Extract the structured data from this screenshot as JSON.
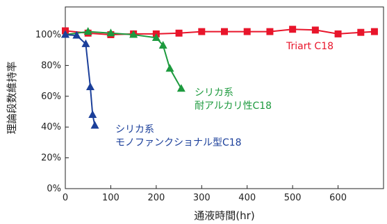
{
  "chart_data": {
    "type": "line",
    "xlabel": "通液時間(hr)",
    "ylabel": "理論段数維持率",
    "xlim": [
      0,
      700
    ],
    "ylim": [
      0,
      100
    ],
    "x_ticks": [
      "0",
      "100",
      "200",
      "300",
      "400",
      "500",
      "600"
    ],
    "y_ticks": [
      "0%",
      "20%",
      "40%",
      "60%",
      "80%",
      "100%"
    ],
    "grid": false,
    "series": [
      {
        "name": "Triart C18",
        "color": "#e8152b",
        "marker": "square",
        "label_lines": [
          "Triart C18"
        ],
        "x": [
          0,
          50,
          100,
          150,
          200,
          250,
          300,
          350,
          400,
          450,
          500,
          550,
          600,
          650,
          680
        ],
        "y": [
          102.5,
          101,
          100,
          100.5,
          100.5,
          101,
          102,
          102,
          102,
          102,
          103.5,
          103,
          100.5,
          101.5,
          102
        ]
      },
      {
        "name": "シリカ系 耐アルカリ性C18",
        "color": "#1d9a3e",
        "marker": "triangle",
        "label_lines": [
          "シリカ系",
          "耐アルカリ性C18"
        ],
        "x": [
          0,
          50,
          100,
          150,
          200,
          215,
          230,
          255
        ],
        "y": [
          100,
          102,
          101,
          100,
          98,
          93,
          78,
          65
        ]
      },
      {
        "name": "シリカ系 モノファンクショナル型C18",
        "color": "#1b3f9a",
        "marker": "triangle",
        "label_lines": [
          "シリカ系",
          "モノファンクショナル型C18"
        ],
        "x": [
          0,
          25,
          45,
          55,
          60,
          65
        ],
        "y": [
          100,
          99.5,
          94,
          66,
          48,
          41
        ]
      }
    ]
  }
}
